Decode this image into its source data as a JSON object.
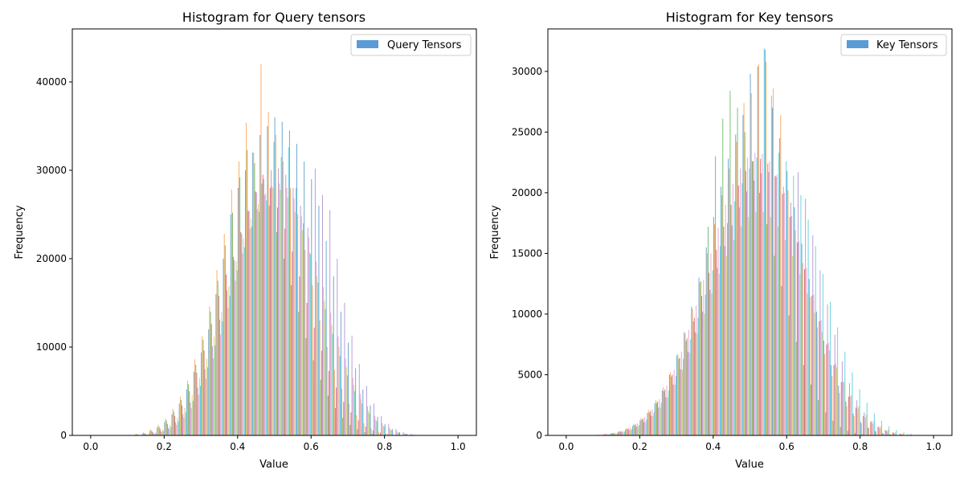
{
  "chart_data": [
    {
      "type": "bar",
      "title": "Histogram for Query tensors",
      "xlabel": "Value",
      "ylabel": "Frequency",
      "xlim": [
        -0.05,
        1.05
      ],
      "ylim": [
        0,
        46000
      ],
      "xticks": [
        0.0,
        0.2,
        0.4,
        0.6,
        0.8,
        1.0
      ],
      "xtick_labels": [
        "0.0",
        "0.2",
        "0.4",
        "0.6",
        "0.8",
        "1.0"
      ],
      "yticks": [
        0,
        10000,
        20000,
        30000,
        40000
      ],
      "ytick_labels": [
        "0",
        "10000",
        "20000",
        "30000",
        "40000"
      ],
      "legend": {
        "label": "Query Tensors",
        "location": "upper right",
        "color": "#5b9bd5"
      },
      "series": [
        {
          "color": "#1f77b4",
          "alpha": 0.7
        },
        {
          "color": "#ff7f0e",
          "alpha": 0.7
        },
        {
          "color": "#2ca02c",
          "alpha": 0.7
        },
        {
          "color": "#d62728",
          "alpha": 0.7
        },
        {
          "color": "#9467bd",
          "alpha": 0.7
        },
        {
          "color": "#e377c2",
          "alpha": 0.7
        },
        {
          "color": "#bcbd22",
          "alpha": 0.7
        },
        {
          "color": "#17becf",
          "alpha": 0.7
        }
      ],
      "bins": [
        0.0,
        0.02,
        0.04,
        0.06,
        0.08,
        0.1,
        0.12,
        0.14,
        0.16,
        0.18,
        0.2,
        0.22,
        0.24,
        0.26,
        0.28,
        0.3,
        0.32,
        0.34,
        0.36,
        0.38,
        0.4,
        0.42,
        0.44,
        0.46,
        0.48,
        0.5,
        0.52,
        0.54,
        0.56,
        0.58,
        0.6,
        0.62,
        0.64,
        0.66,
        0.68,
        0.7,
        0.72,
        0.74,
        0.76,
        0.78,
        0.8,
        0.82,
        0.84,
        0.86,
        0.88,
        0.9,
        0.92,
        0.94,
        0.96,
        0.98
      ],
      "values": [
        [
          0,
          0,
          0,
          10,
          20,
          40,
          100,
          200,
          500,
          900,
          1500,
          2400,
          3600,
          5200,
          7200,
          9400,
          12000,
          16000,
          20000,
          25000,
          28000,
          30000,
          32000,
          34000,
          35000,
          36000,
          35500,
          34500,
          33000,
          31000,
          29000,
          26000,
          22000,
          18000,
          14000,
          10500,
          7600,
          5200,
          3400,
          2100,
          1300,
          700,
          350,
          180,
          80,
          40,
          10,
          0,
          0,
          0
        ],
        [
          0,
          0,
          10,
          20,
          40,
          80,
          180,
          350,
          700,
          1200,
          1900,
          3000,
          4400,
          6200,
          8600,
          11200,
          14600,
          18700,
          22800,
          27800,
          31000,
          35400,
          32000,
          42000,
          36600,
          34000,
          31000,
          28000,
          25000,
          21000,
          17000,
          13000,
          10000,
          7400,
          5300,
          3600,
          2300,
          1400,
          800,
          420,
          200,
          90,
          40,
          10,
          0,
          0,
          0,
          0,
          0,
          0
        ],
        [
          0,
          0,
          0,
          10,
          20,
          50,
          120,
          260,
          520,
          1000,
          1700,
          2700,
          4000,
          5800,
          8000,
          10800,
          14000,
          17500,
          21500,
          25200,
          29200,
          32300,
          30800,
          28500,
          26000,
          23000,
          20000,
          17000,
          14000,
          11000,
          8500,
          6300,
          4500,
          3100,
          2000,
          1200,
          700,
          360,
          170,
          80,
          30,
          10,
          0,
          0,
          0,
          0,
          0,
          0,
          0,
          0
        ],
        [
          0,
          0,
          0,
          0,
          10,
          30,
          80,
          180,
          380,
          760,
          1300,
          2200,
          3400,
          5000,
          7100,
          9600,
          12600,
          15800,
          18200,
          20200,
          23000,
          25400,
          27600,
          29500,
          28000,
          25800,
          23400,
          20800,
          18000,
          15000,
          12200,
          9600,
          7300,
          5400,
          3800,
          2600,
          1700,
          1000,
          560,
          300,
          150,
          60,
          20,
          0,
          0,
          0,
          0,
          0,
          0,
          0
        ],
        [
          0,
          0,
          0,
          0,
          0,
          10,
          40,
          100,
          220,
          460,
          860,
          1500,
          2400,
          3700,
          5400,
          7500,
          10100,
          13100,
          16400,
          19800,
          22800,
          25400,
          27500,
          29000,
          30000,
          30200,
          29500,
          28000,
          26000,
          23500,
          30200,
          27200,
          25500,
          20000,
          15000,
          11300,
          8100,
          5600,
          3600,
          2200,
          1300,
          700,
          350,
          160,
          70,
          20,
          0,
          0,
          0,
          0
        ],
        [
          0,
          0,
          0,
          0,
          0,
          10,
          30,
          80,
          180,
          380,
          700,
          1200,
          2000,
          3100,
          4600,
          6400,
          8700,
          11400,
          14400,
          17500,
          20600,
          23400,
          25600,
          27200,
          28200,
          28500,
          28000,
          26800,
          24800,
          22400,
          19700,
          16800,
          13900,
          11200,
          8700,
          6500,
          4700,
          3300,
          2200,
          1400,
          850,
          480,
          250,
          120,
          50,
          20,
          0,
          0,
          0,
          0
        ],
        [
          0,
          0,
          0,
          0,
          10,
          20,
          60,
          150,
          330,
          660,
          1200,
          2000,
          3100,
          4600,
          6500,
          8700,
          11200,
          14000,
          16900,
          19700,
          22300,
          24500,
          26200,
          27400,
          28000,
          27800,
          26900,
          25300,
          23200,
          20700,
          18000,
          15200,
          12500,
          10000,
          7700,
          5700,
          4100,
          2800,
          1800,
          1100,
          640,
          350,
          180,
          80,
          30,
          10,
          0,
          0,
          0,
          0
        ],
        [
          0,
          0,
          0,
          0,
          0,
          10,
          40,
          110,
          250,
          500,
          930,
          1600,
          2600,
          3900,
          5600,
          7700,
          10200,
          12900,
          15800,
          18700,
          21300,
          23600,
          25300,
          26600,
          33200,
          31500,
          32600,
          28000,
          24000,
          20500,
          17300,
          14300,
          11500,
          9000,
          6800,
          5000,
          3600,
          2500,
          1600,
          1000,
          600,
          320,
          160,
          70,
          30,
          10,
          0,
          0,
          0,
          0
        ]
      ]
    },
    {
      "type": "bar",
      "title": "Histogram for Key tensors",
      "xlabel": "Value",
      "ylabel": "Frequency",
      "xlim": [
        -0.05,
        1.05
      ],
      "ylim": [
        0,
        33500
      ],
      "xticks": [
        0.0,
        0.2,
        0.4,
        0.6,
        0.8,
        1.0
      ],
      "xtick_labels": [
        "0.0",
        "0.2",
        "0.4",
        "0.6",
        "0.8",
        "1.0"
      ],
      "yticks": [
        0,
        5000,
        10000,
        15000,
        20000,
        25000,
        30000
      ],
      "ytick_labels": [
        "0",
        "5000",
        "10000",
        "15000",
        "20000",
        "25000",
        "30000"
      ],
      "legend": {
        "label": "Key Tensors",
        "location": "upper right",
        "color": "#5b9bd5"
      },
      "series": [
        {
          "color": "#1f77b4",
          "alpha": 0.7
        },
        {
          "color": "#ff7f0e",
          "alpha": 0.7
        },
        {
          "color": "#2ca02c",
          "alpha": 0.7
        },
        {
          "color": "#d62728",
          "alpha": 0.7
        },
        {
          "color": "#9467bd",
          "alpha": 0.7
        },
        {
          "color": "#e377c2",
          "alpha": 0.7
        },
        {
          "color": "#bcbd22",
          "alpha": 0.7
        },
        {
          "color": "#17becf",
          "alpha": 0.7
        }
      ],
      "bins": [
        0.0,
        0.02,
        0.04,
        0.06,
        0.08,
        0.1,
        0.12,
        0.14,
        0.16,
        0.18,
        0.2,
        0.22,
        0.24,
        0.26,
        0.28,
        0.3,
        0.32,
        0.34,
        0.36,
        0.38,
        0.4,
        0.42,
        0.44,
        0.46,
        0.48,
        0.5,
        0.52,
        0.54,
        0.56,
        0.58,
        0.6,
        0.62,
        0.64,
        0.66,
        0.68,
        0.7,
        0.72,
        0.74,
        0.76,
        0.78,
        0.8,
        0.82,
        0.84,
        0.86,
        0.88,
        0.9,
        0.92,
        0.94,
        0.96,
        0.98
      ],
      "values": [
        [
          0,
          0,
          10,
          20,
          40,
          80,
          150,
          280,
          480,
          800,
          1250,
          1850,
          2650,
          3700,
          5000,
          6600,
          8500,
          10600,
          13000,
          15500,
          18000,
          20500,
          22800,
          24800,
          26400,
          29800,
          30400,
          31800,
          27000,
          24500,
          21800,
          18800,
          15800,
          12900,
          10200,
          7800,
          5800,
          4100,
          2800,
          1800,
          1100,
          650,
          360,
          190,
          90,
          40,
          20,
          0,
          0,
          0
        ],
        [
          0,
          0,
          10,
          30,
          60,
          110,
          200,
          360,
          600,
          950,
          1450,
          2100,
          2900,
          3950,
          5200,
          6700,
          8400,
          10400,
          12600,
          15000,
          17400,
          19800,
          22000,
          24200,
          27400,
          28200,
          30600,
          30800,
          28600,
          26400,
          20200,
          16900,
          14200,
          11400,
          8900,
          6700,
          4900,
          3500,
          2400,
          1600,
          1000,
          600,
          340,
          180,
          90,
          40,
          20,
          0,
          0,
          0
        ],
        [
          0,
          0,
          0,
          20,
          40,
          90,
          170,
          310,
          520,
          840,
          1280,
          1880,
          2660,
          3650,
          4850,
          6300,
          7800,
          9400,
          12700,
          17200,
          23000,
          26100,
          28400,
          27000,
          25000,
          22600,
          20000,
          17400,
          14800,
          12300,
          9900,
          7700,
          5800,
          4200,
          2900,
          1900,
          1200,
          700,
          380,
          190,
          90,
          40,
          10,
          0,
          0,
          0,
          0,
          0,
          0,
          0
        ],
        [
          0,
          0,
          10,
          20,
          50,
          100,
          190,
          340,
          570,
          910,
          1380,
          2000,
          2800,
          3800,
          5000,
          6400,
          8000,
          9700,
          11500,
          13400,
          15300,
          17200,
          19000,
          20600,
          21800,
          22600,
          22800,
          22400,
          21400,
          19900,
          18000,
          15900,
          13700,
          11500,
          9400,
          7500,
          5800,
          4400,
          3200,
          2300,
          1600,
          1100,
          700,
          430,
          250,
          140,
          70,
          30,
          10,
          0
        ],
        [
          0,
          0,
          0,
          10,
          30,
          70,
          140,
          260,
          440,
          720,
          1100,
          1620,
          2300,
          3150,
          4200,
          5450,
          6900,
          8500,
          10200,
          12000,
          13800,
          15600,
          17300,
          18800,
          20100,
          21000,
          21600,
          21700,
          21300,
          20500,
          19200,
          21700,
          19500,
          16500,
          13600,
          10800,
          8300,
          6100,
          4300,
          2900,
          1900,
          1200,
          720,
          410,
          220,
          110,
          50,
          20,
          0,
          0
        ],
        [
          0,
          0,
          10,
          30,
          60,
          120,
          220,
          390,
          640,
          1000,
          1500,
          2150,
          3000,
          4100,
          5400,
          6900,
          8700,
          10700,
          12800,
          15000,
          17100,
          19000,
          20700,
          22000,
          22900,
          23300,
          23200,
          22600,
          21500,
          20000,
          18100,
          16000,
          13800,
          11600,
          9500,
          7600,
          5900,
          4400,
          3200,
          2200,
          1500,
          950,
          580,
          330,
          180,
          90,
          40,
          20,
          0,
          0
        ],
        [
          0,
          0,
          0,
          10,
          30,
          70,
          140,
          260,
          440,
          710,
          1090,
          1600,
          2280,
          3130,
          4170,
          5400,
          6800,
          8400,
          10000,
          11700,
          13300,
          14800,
          16100,
          17200,
          18000,
          18400,
          18400,
          18000,
          17200,
          16100,
          14800,
          13300,
          11700,
          10100,
          8500,
          7000,
          5600,
          4400,
          3300,
          2400,
          1700,
          1150,
          740,
          450,
          260,
          140,
          70,
          30,
          10,
          0
        ],
        [
          0,
          0,
          10,
          20,
          50,
          100,
          180,
          320,
          540,
          860,
          1300,
          1900,
          2700,
          3700,
          4900,
          6300,
          7900,
          9700,
          11600,
          13600,
          15600,
          17500,
          19300,
          20800,
          22000,
          22900,
          31900,
          28000,
          23300,
          22600,
          21400,
          19800,
          17800,
          15600,
          13300,
          11000,
          8900,
          6900,
          5200,
          3800,
          2700,
          1800,
          1200,
          750,
          450,
          250,
          130,
          60,
          20,
          0
        ]
      ]
    }
  ]
}
